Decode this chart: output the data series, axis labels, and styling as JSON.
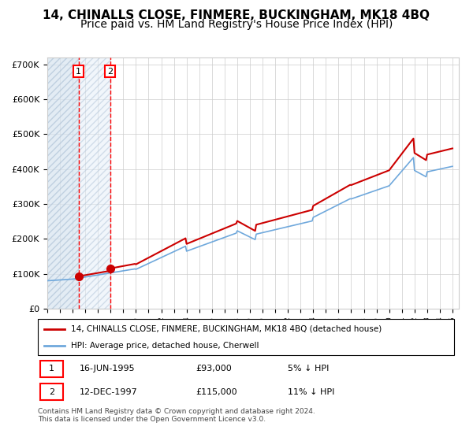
{
  "title": "14, CHINALLS CLOSE, FINMERE, BUCKINGHAM, MK18 4BQ",
  "subtitle": "Price paid vs. HM Land Registry's House Price Index (HPI)",
  "ylim": [
    0,
    720000
  ],
  "yticks": [
    0,
    100000,
    200000,
    300000,
    400000,
    500000,
    600000,
    700000
  ],
  "ytick_labels": [
    "£0",
    "£100K",
    "£200K",
    "£300K",
    "£400K",
    "£500K",
    "£600K",
    "£700K"
  ],
  "sale1_date": 1995.46,
  "sale1_price": 93000,
  "sale1_label": "1",
  "sale2_date": 1997.95,
  "sale2_price": 115000,
  "sale2_label": "2",
  "hpi_color": "#6fa8dc",
  "price_color": "#cc0000",
  "legend_line1": "14, CHINALLS CLOSE, FINMERE, BUCKINGHAM, MK18 4BQ (detached house)",
  "legend_line2": "HPI: Average price, detached house, Cherwell",
  "table_row1": [
    "1",
    "16-JUN-1995",
    "£93,000",
    "5% ↓ HPI"
  ],
  "table_row2": [
    "2",
    "12-DEC-1997",
    "£115,000",
    "11% ↓ HPI"
  ],
  "footnote": "Contains HM Land Registry data © Crown copyright and database right 2024.\nThis data is licensed under the Open Government Licence v3.0.",
  "title_fontsize": 11,
  "subtitle_fontsize": 10
}
